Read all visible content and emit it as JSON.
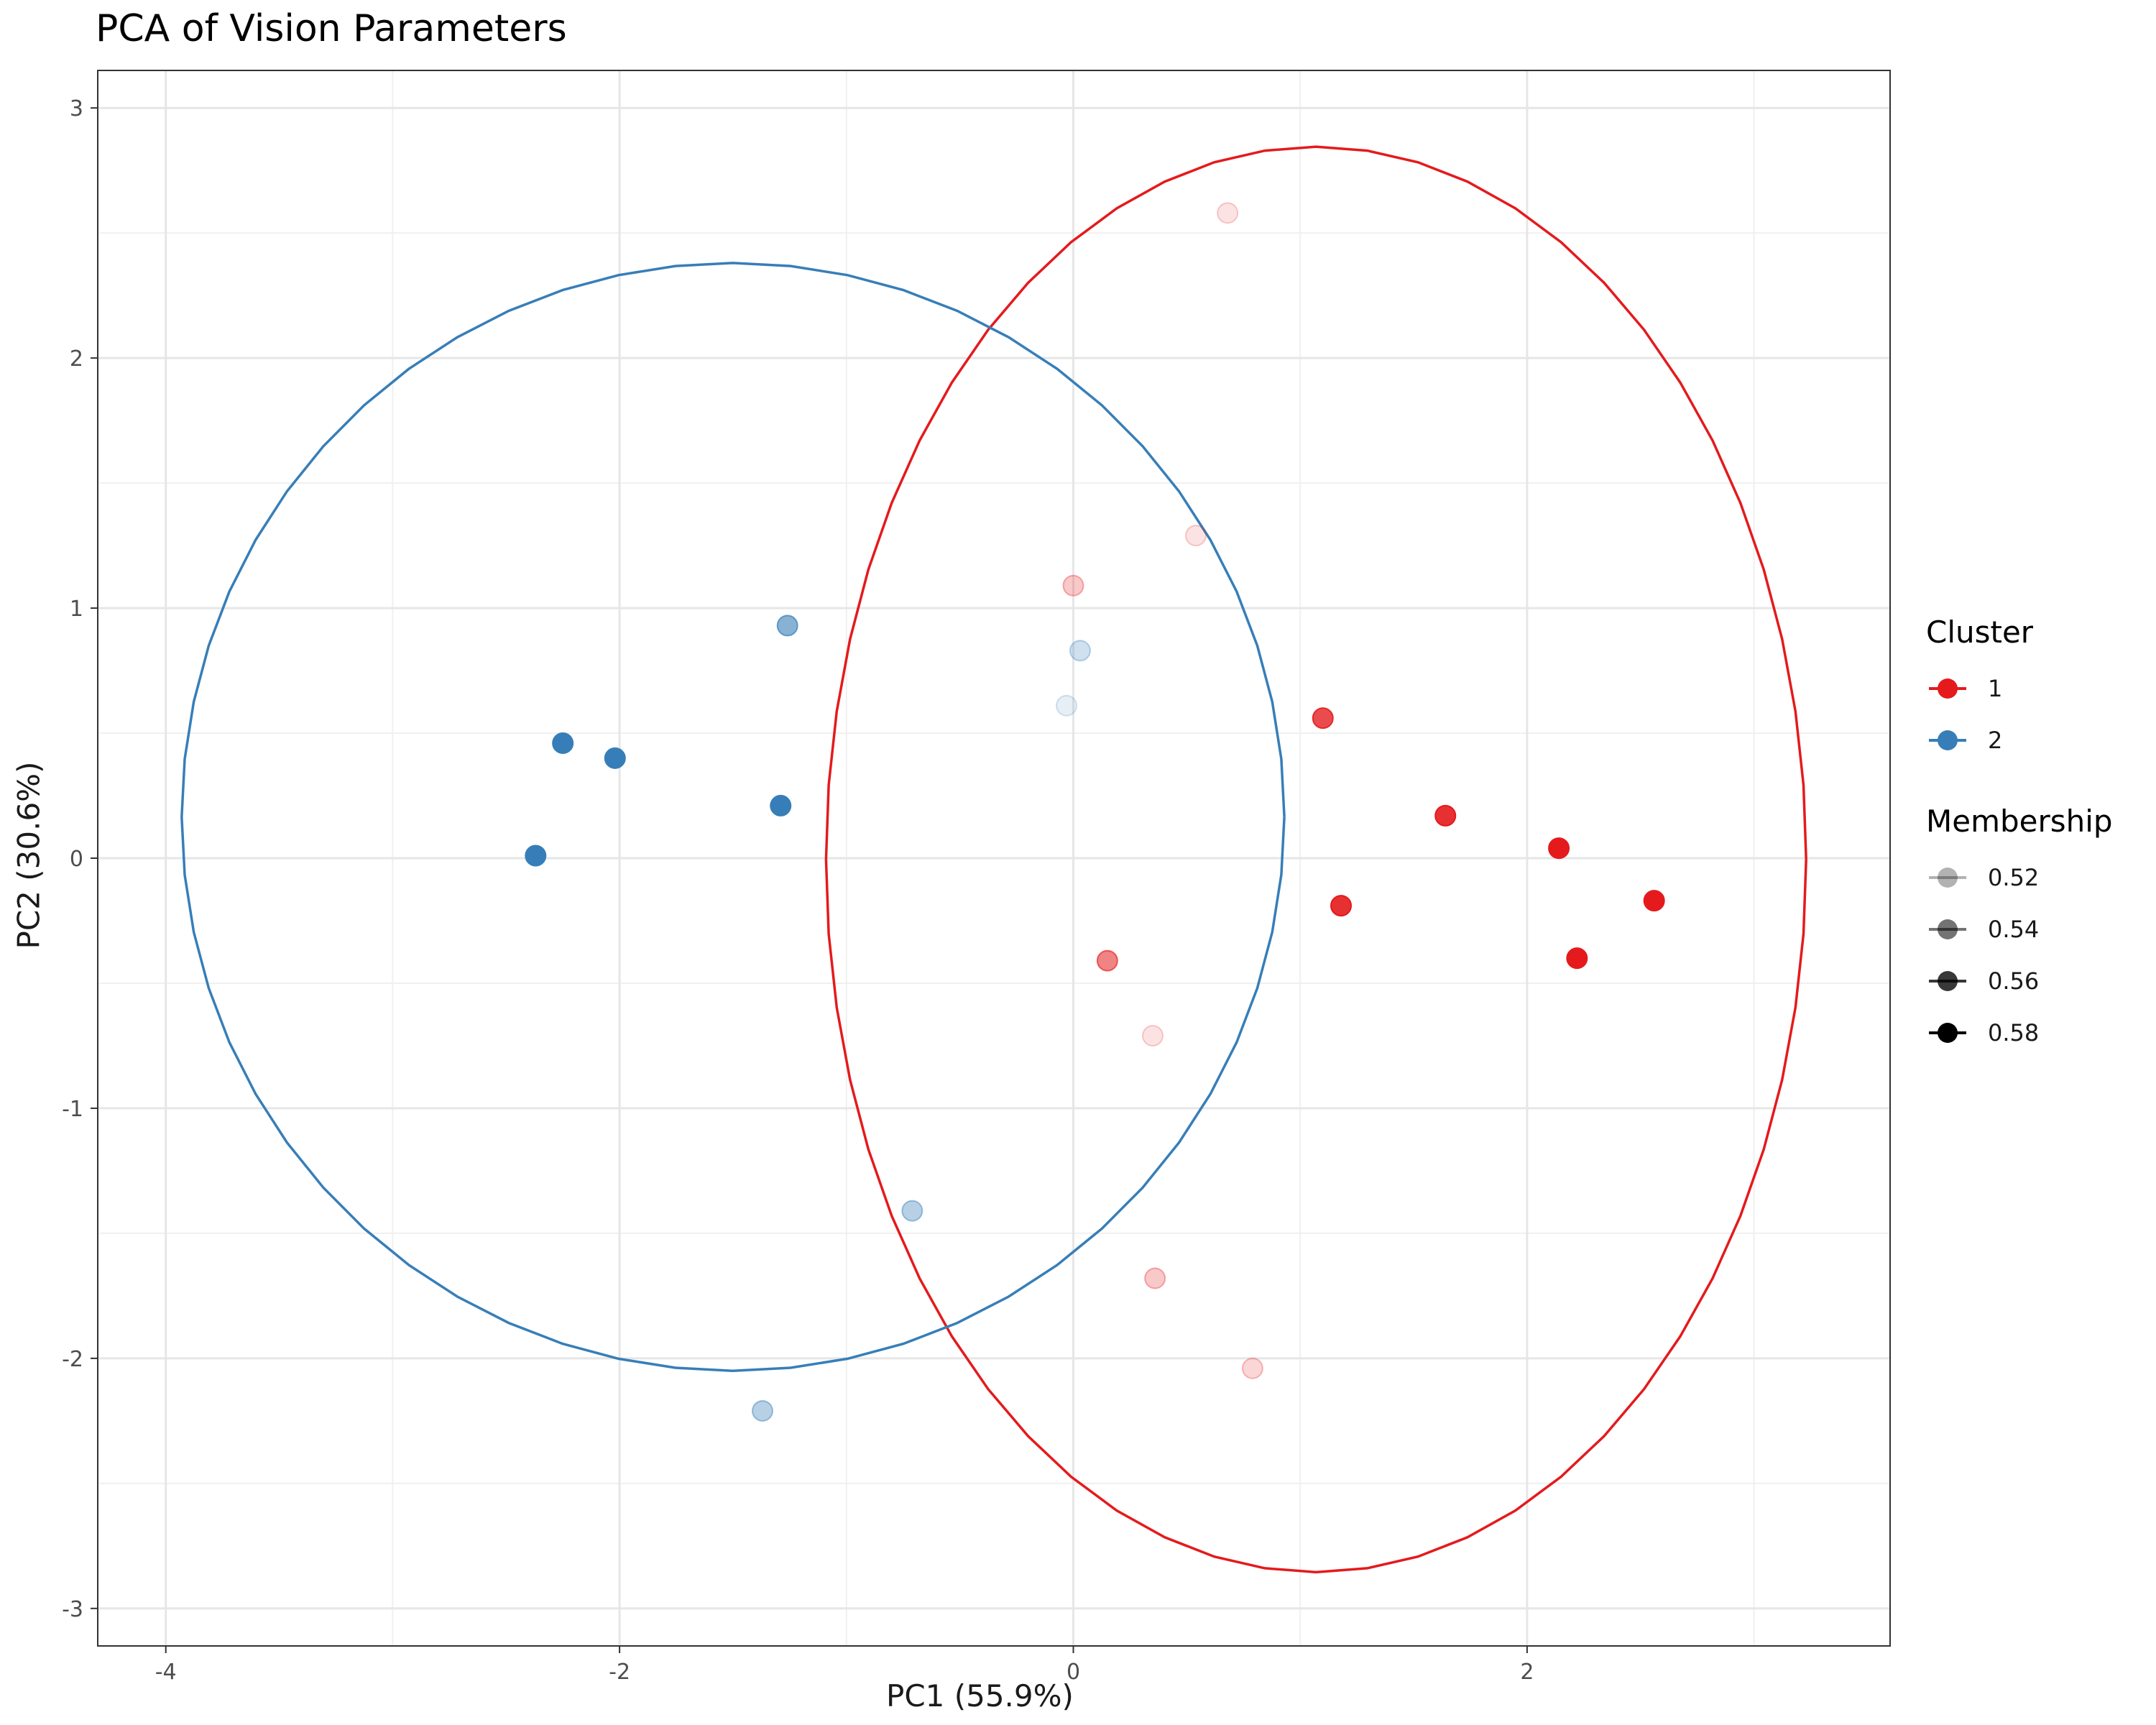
{
  "chart_data": {
    "type": "scatter",
    "title": "PCA of Vision Parameters",
    "xlabel": "PC1 (55.9%)",
    "ylabel": "PC2 (30.6%)",
    "xlim": [
      -4.3,
      3.6
    ],
    "ylim": [
      -3.15,
      3.15
    ],
    "x_ticks": [
      -4,
      -2,
      0,
      2
    ],
    "y_ticks": [
      -3,
      -2,
      -1,
      0,
      1,
      2,
      3
    ],
    "x_tick_labels": [
      "-4",
      "-2",
      "0",
      "2"
    ],
    "y_tick_labels": [
      "-3",
      "-2",
      "-1",
      "0",
      "1",
      "2",
      "3"
    ],
    "grid": true,
    "series": [
      {
        "name": "1",
        "color": "#E41A1C",
        "points": [
          {
            "x": 0.68,
            "y": 2.58,
            "membership": 0.51
          },
          {
            "x": 0.54,
            "y": 1.29,
            "membership": 0.51
          },
          {
            "x": 0.0,
            "y": 1.09,
            "membership": 0.52
          },
          {
            "x": 1.1,
            "y": 0.56,
            "membership": 0.565
          },
          {
            "x": 1.64,
            "y": 0.17,
            "membership": 0.575
          },
          {
            "x": 2.14,
            "y": 0.04,
            "membership": 0.585
          },
          {
            "x": 2.56,
            "y": -0.17,
            "membership": 0.585
          },
          {
            "x": 1.18,
            "y": -0.19,
            "membership": 0.575
          },
          {
            "x": 2.22,
            "y": -0.4,
            "membership": 0.585
          },
          {
            "x": 0.15,
            "y": -0.41,
            "membership": 0.545
          },
          {
            "x": 0.35,
            "y": -0.71,
            "membership": 0.51
          },
          {
            "x": 0.36,
            "y": -1.68,
            "membership": 0.52
          },
          {
            "x": 0.79,
            "y": -2.04,
            "membership": 0.515
          }
        ]
      },
      {
        "name": "2",
        "color": "#377EB8",
        "points": [
          {
            "x": -1.26,
            "y": 0.93,
            "membership": 0.55
          },
          {
            "x": -2.25,
            "y": 0.46,
            "membership": 0.585
          },
          {
            "x": -2.02,
            "y": 0.4,
            "membership": 0.585
          },
          {
            "x": -1.29,
            "y": 0.21,
            "membership": 0.585
          },
          {
            "x": -2.37,
            "y": 0.01,
            "membership": 0.585
          },
          {
            "x": 0.03,
            "y": 0.83,
            "membership": 0.52
          },
          {
            "x": -0.03,
            "y": 0.61,
            "membership": 0.51
          },
          {
            "x": -0.71,
            "y": -1.41,
            "membership": 0.53
          },
          {
            "x": -1.37,
            "y": -2.21,
            "membership": 0.53
          }
        ]
      }
    ],
    "ellipses": [
      {
        "series": "1",
        "color": "#E41A1C",
        "cx": 1.07,
        "cy": -0.005,
        "rx": 2.16,
        "ry": 2.85
      },
      {
        "series": "2",
        "color": "#377EB8",
        "cx": -1.5,
        "cy": 0.165,
        "rx": 2.43,
        "ry": 2.215
      }
    ],
    "legend": {
      "position": "right",
      "cluster_title": "Cluster",
      "cluster_items": [
        {
          "label": "1",
          "color": "#E41A1C"
        },
        {
          "label": "2",
          "color": "#377EB8"
        }
      ],
      "membership_title": "Membership",
      "membership_items": [
        {
          "label": "0.52",
          "membership": 0.52
        },
        {
          "label": "0.54",
          "membership": 0.54
        },
        {
          "label": "0.56",
          "membership": 0.56
        },
        {
          "label": "0.58",
          "membership": 0.58
        }
      ]
    }
  }
}
